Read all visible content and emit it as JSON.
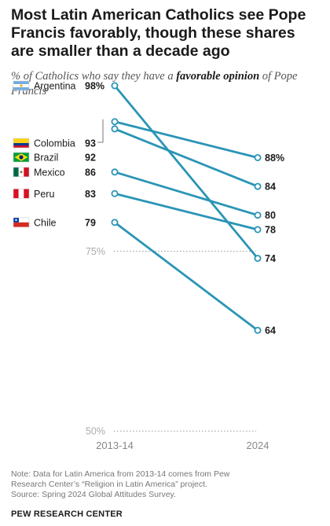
{
  "title": "Most Latin American Catholics see Pope Francis favorably, though these shares are smaller than a decade ago",
  "subtitle_pre": "% of Catholics who say they have a ",
  "subtitle_bold": "favorable opinion",
  "subtitle_post": " of Pope Francis",
  "note_lines": [
    "Note: Data for Latin America from 2013-14 comes from Pew",
    "Research Center’s “Religion in Latin America” project.",
    "Source: Spring 2024 Global Attitudes Survey."
  ],
  "source": "PEW RESEARCH CENTER",
  "colors": {
    "line": "#2a95b5",
    "grid": "#999999",
    "text": "#1a1a1a"
  },
  "chart_data": {
    "type": "line",
    "subtype": "slope",
    "title": "Most Latin American Catholics see Pope Francis favorably, though these shares are smaller than a decade ago",
    "x": [
      "2013-14",
      "2024"
    ],
    "ylim": [
      50,
      100
    ],
    "reference_lines": [
      {
        "value": 75,
        "label": "75%"
      },
      {
        "value": 50,
        "label": "50%"
      }
    ],
    "series": [
      {
        "name": "Argentina",
        "flag": "argentina-flag-icon",
        "values": [
          98,
          74
        ],
        "labels": [
          "98%",
          "74"
        ]
      },
      {
        "name": "Colombia",
        "flag": "colombia-flag-icon",
        "values": [
          93,
          88
        ],
        "labels": [
          "93",
          "88%"
        ]
      },
      {
        "name": "Brazil",
        "flag": "brazil-flag-icon",
        "values": [
          92,
          84
        ],
        "labels": [
          "92",
          "84"
        ]
      },
      {
        "name": "Mexico",
        "flag": "mexico-flag-icon",
        "values": [
          86,
          80
        ],
        "labels": [
          "86",
          "80"
        ]
      },
      {
        "name": "Peru",
        "flag": "peru-flag-icon",
        "values": [
          83,
          78
        ],
        "labels": [
          "83",
          "78"
        ]
      },
      {
        "name": "Chile",
        "flag": "chile-flag-icon",
        "values": [
          79,
          64
        ],
        "labels": [
          "79",
          "64"
        ]
      }
    ]
  }
}
